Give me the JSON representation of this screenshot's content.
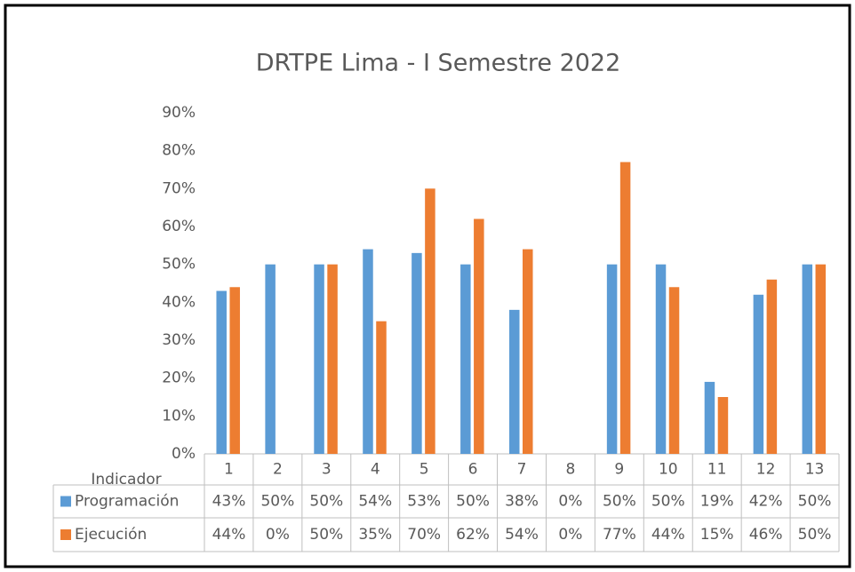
{
  "chart_data": {
    "type": "bar",
    "title": "DRTPE Lima - I Semestre 2022",
    "x_label": "Indicador",
    "categories": [
      "1",
      "2",
      "3",
      "4",
      "5",
      "6",
      "7",
      "8",
      "9",
      "10",
      "11",
      "12",
      "13"
    ],
    "series": [
      {
        "name": "Programación",
        "color": "#5b9bd5",
        "values": [
          43,
          50,
          50,
          54,
          53,
          50,
          38,
          0,
          50,
          50,
          19,
          42,
          50
        ],
        "value_labels": [
          "43%",
          "50%",
          "50%",
          "54%",
          "53%",
          "50%",
          "38%",
          "0%",
          "50%",
          "50%",
          "19%",
          "42%",
          "50%"
        ]
      },
      {
        "name": "Ejecución",
        "color": "#ed7d31",
        "values": [
          44,
          0,
          50,
          35,
          70,
          62,
          54,
          0,
          77,
          44,
          15,
          46,
          50
        ],
        "value_labels": [
          "44%",
          "0%",
          "50%",
          "35%",
          "70%",
          "62%",
          "54%",
          "0%",
          "77%",
          "44%",
          "15%",
          "46%",
          "50%"
        ]
      }
    ],
    "ylim": [
      0,
      90
    ],
    "yticks": [
      {
        "value": 0,
        "label": "0%"
      },
      {
        "value": 10,
        "label": "10%"
      },
      {
        "value": 20,
        "label": "20%"
      },
      {
        "value": 30,
        "label": "30%"
      },
      {
        "value": 40,
        "label": "40%"
      },
      {
        "value": 50,
        "label": "50%"
      },
      {
        "value": 60,
        "label": "60%"
      },
      {
        "value": 70,
        "label": "70%"
      },
      {
        "value": 80,
        "label": "80%"
      },
      {
        "value": 90,
        "label": "90%"
      }
    ],
    "grid": false
  }
}
